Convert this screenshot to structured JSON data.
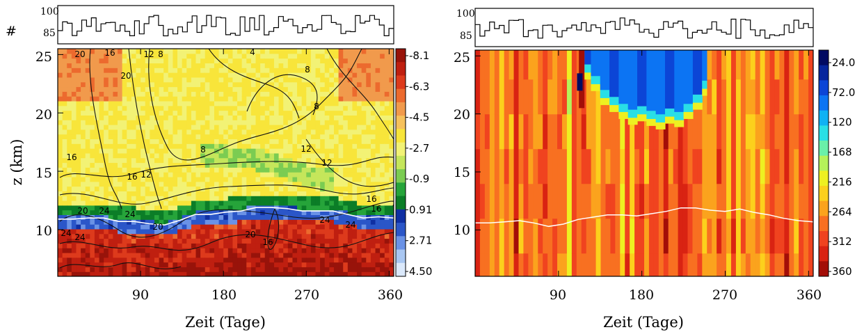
{
  "chart_data": [
    {
      "type": "heatmap",
      "panel": "left",
      "xlabel": "Zeit (Tage)",
      "ylabel": "z (km)",
      "xticks": [
        90,
        180,
        270,
        360
      ],
      "yticks": [
        10,
        15,
        20,
        25
      ],
      "xlim": [
        0,
        365
      ],
      "ylim": [
        6,
        25.5
      ],
      "colorbar_labels": [
        "-8.1",
        "-6.3",
        "-4.5",
        "-2.7",
        "-0.9",
        "0.91",
        "2.71",
        "4.50"
      ],
      "contour_labels": [
        "4",
        "8",
        "8",
        "8",
        "8",
        "12",
        "12",
        "12",
        "12",
        "16",
        "16",
        "16",
        "16",
        "16",
        "16",
        "20",
        "20",
        "20",
        "20",
        "20",
        "24",
        "24",
        "24",
        "24",
        "24",
        "24"
      ],
      "histogram": {
        "label": "#",
        "yticks": [
          "100",
          "85"
        ]
      },
      "tropopause_height_km": [
        10.9,
        10.9,
        11.0,
        11.0,
        10.7,
        10.7,
        10.5,
        10.4,
        10.8,
        11.3,
        11.3,
        11.5,
        11.6,
        11.9,
        11.9,
        11.8,
        11.6,
        11.6,
        11.6,
        11.3,
        11.0,
        11.1,
        11.0
      ]
    },
    {
      "type": "heatmap",
      "panel": "right",
      "xlabel": "Zeit (Tage)",
      "ylabel": "",
      "xticks": [
        90,
        180,
        270,
        360
      ],
      "yticks": [
        10,
        15,
        20,
        25
      ],
      "xlim": [
        0,
        365
      ],
      "ylim": [
        6,
        25.5
      ],
      "colorbar_labels": [
        "24.0",
        "72.0",
        "120",
        "168",
        "216",
        "264",
        "312",
        "360"
      ],
      "histogram": {
        "label": "",
        "yticks": [
          "100",
          "85"
        ]
      },
      "tropopause_height_km": [
        10.6,
        10.6,
        10.7,
        10.8,
        10.6,
        10.3,
        10.5,
        10.9,
        11.1,
        11.3,
        11.3,
        11.2,
        11.4,
        11.6,
        11.9,
        11.9,
        11.7,
        11.6,
        11.8,
        11.5,
        11.3,
        11.0,
        10.8,
        10.7
      ]
    }
  ],
  "colors": {
    "left_scale": [
      "#dbe9fb",
      "#a9c7f2",
      "#6a92e6",
      "#2b56c8",
      "#0f2fa3",
      "#0b7d27",
      "#26a43a",
      "#7bcc52",
      "#c5e65b",
      "#f2f275",
      "#f8e53a",
      "#f6c15c",
      "#f19a4c",
      "#ec6a2e",
      "#dd3a1c",
      "#bf1f10",
      "#98130a"
    ],
    "right_scale": [
      "#010a62",
      "#06259d",
      "#0c45d6",
      "#0c74f3",
      "#0fb2f4",
      "#29dfe6",
      "#6af0a9",
      "#b5f25a",
      "#eef021",
      "#fcd01c",
      "#fba31d",
      "#f87021",
      "#f0431f",
      "#d92312",
      "#a30e08"
    ]
  }
}
